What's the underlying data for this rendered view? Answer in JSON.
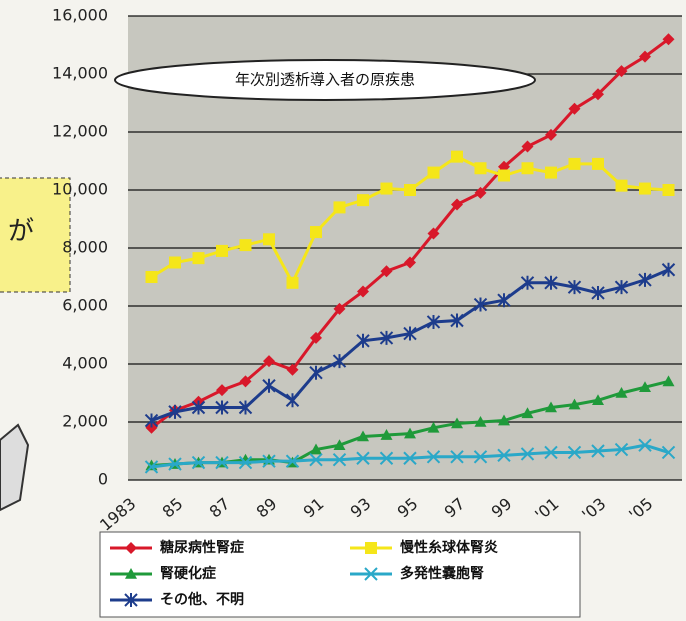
{
  "side_note": "が",
  "chart_data": {
    "type": "line",
    "title": "年次別透析導入者の原疾患",
    "categories": [
      "1983",
      null,
      "85",
      null,
      "87",
      null,
      "89",
      null,
      "91",
      null,
      "93",
      null,
      "95",
      null,
      "97",
      null,
      "99",
      null,
      "'01",
      null,
      "'03",
      null,
      "'05",
      null
    ],
    "ylim": [
      0,
      16000
    ],
    "yticks": [
      0,
      {
        "value": 2000,
        "label": "2,000"
      },
      {
        "value": 4000,
        "label": "4,000"
      },
      {
        "value": 6000,
        "label": "6,000"
      },
      {
        "value": 8000,
        "label": "8,000"
      },
      {
        "value": 10000,
        "label": "10,000"
      },
      {
        "value": 12000,
        "label": "12,000"
      },
      {
        "value": 14000,
        "label": "14,000"
      },
      {
        "value": 16000,
        "label": "16,000"
      }
    ],
    "grid": true,
    "series": [
      {
        "name": "糖尿病性腎症",
        "color": "#d8182a",
        "marker": "diamond",
        "values": [
          null,
          1800,
          2400,
          2700,
          3100,
          3400,
          4100,
          3800,
          4900,
          5900,
          6500,
          7200,
          7500,
          8500,
          9500,
          9900,
          10800,
          11500,
          11900,
          12800,
          13300,
          14100,
          14600,
          15200
        ]
      },
      {
        "name": "慢性糸球体腎炎",
        "color": "#f5e619",
        "marker": "square",
        "values": [
          null,
          7000,
          7500,
          7650,
          7900,
          8100,
          8300,
          6800,
          8550,
          9400,
          9650,
          10050,
          10000,
          10600,
          11150,
          10750,
          10500,
          10750,
          10600,
          10900,
          10900,
          10150,
          10050,
          10000
        ]
      },
      {
        "name": "腎硬化症",
        "color": "#1f9a3a",
        "marker": "triangle",
        "values": [
          null,
          500,
          550,
          600,
          600,
          700,
          700,
          600,
          1050,
          1200,
          1500,
          1550,
          1600,
          1800,
          1950,
          2000,
          2050,
          2300,
          2500,
          2600,
          2750,
          3000,
          3200,
          3400
        ]
      },
      {
        "name": "多発性嚢胞腎",
        "color": "#2aa8c8",
        "marker": "x",
        "values": [
          null,
          450,
          550,
          600,
          600,
          600,
          650,
          650,
          700,
          700,
          750,
          750,
          750,
          800,
          800,
          800,
          850,
          900,
          950,
          950,
          1000,
          1050,
          1200,
          950
        ]
      },
      {
        "name": "その他、不明",
        "color": "#1d3c8c",
        "marker": "star",
        "values": [
          null,
          2050,
          2350,
          2500,
          2500,
          2500,
          3250,
          2750,
          3700,
          4100,
          4800,
          4900,
          5050,
          5450,
          5500,
          6050,
          6200,
          6800,
          6800,
          6650,
          6450,
          6650,
          6900,
          7250
        ]
      }
    ]
  }
}
